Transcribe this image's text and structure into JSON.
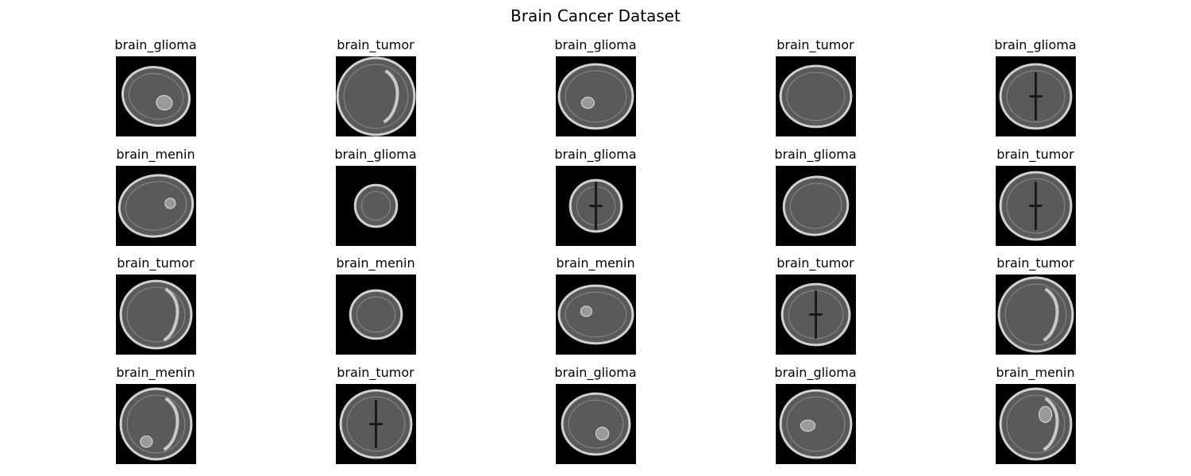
{
  "figure": {
    "title": "Brain Cancer Dataset"
  },
  "rows": [
    [
      "brain_glioma",
      "brain_tumor",
      "brain_glioma",
      "brain_tumor",
      "brain_glioma"
    ],
    [
      "brain_menin",
      "brain_glioma",
      "brain_glioma",
      "brain_glioma",
      "brain_tumor"
    ],
    [
      "brain_tumor",
      "brain_menin",
      "brain_menin",
      "brain_tumor",
      "brain_tumor"
    ],
    [
      "brain_menin",
      "brain_tumor",
      "brain_glioma",
      "brain_glioma",
      "brain_menin"
    ]
  ],
  "colors": {
    "background": "#ffffff",
    "scan_background": "#000000",
    "scan_tissue": "#5a5a5a",
    "scan_skull": "#d0d0d0"
  }
}
